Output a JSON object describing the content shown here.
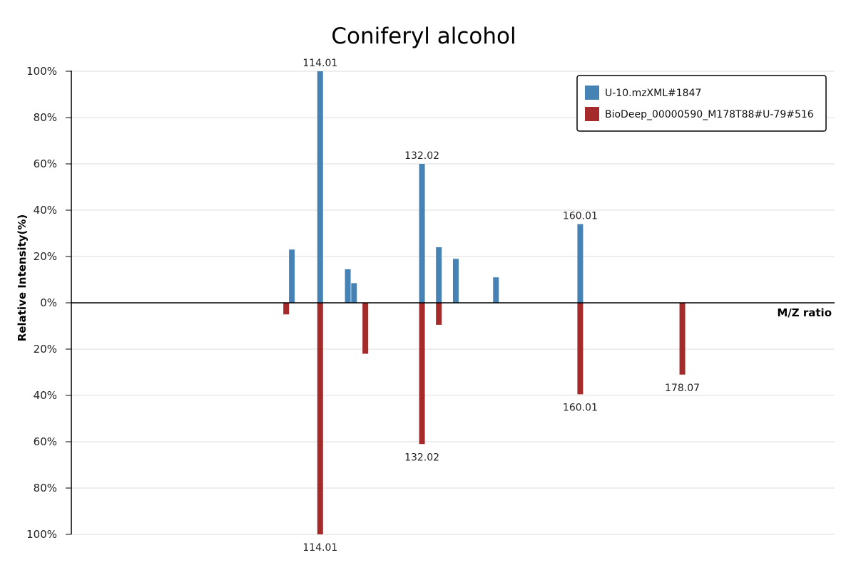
{
  "chart_data": {
    "type": "bar",
    "title": "Coniferyl alcohol",
    "xlabel": "M/Z ratio",
    "ylabel": "Relative Intensity(%)",
    "ylim": [
      -100,
      100
    ],
    "xlim": [
      70,
      205
    ],
    "y_ticks": [
      "100%",
      "80%",
      "60%",
      "40%",
      "20%",
      "0%",
      "20%",
      "40%",
      "60%",
      "80%",
      "100%"
    ],
    "grid": true,
    "legend_position": "top-right",
    "series": [
      {
        "name": "U-10.mzXML#1847",
        "color": "#4682b4",
        "direction": "up",
        "x": [
          109.0,
          114.01,
          118.9,
          120.0,
          132.02,
          135.0,
          138.0,
          160.01,
          145.1
        ],
        "values": [
          23,
          100,
          14.5,
          8.5,
          60,
          24,
          19,
          34,
          11
        ],
        "labels": [
          "",
          "114.01",
          "",
          "",
          "132.02",
          "",
          "",
          "160.01",
          ""
        ]
      },
      {
        "name": "BioDeep_00000590_M178T88#U-79#516",
        "color": "#a52a2a",
        "direction": "down",
        "x": [
          108.0,
          122.0,
          114.01,
          132.02,
          135.0,
          160.01,
          178.07
        ],
        "values": [
          5,
          22,
          100,
          61,
          9.5,
          39.5,
          31
        ],
        "labels": [
          "",
          "",
          "114.01",
          "132.02",
          "",
          "160.01",
          "178.07"
        ]
      }
    ]
  }
}
